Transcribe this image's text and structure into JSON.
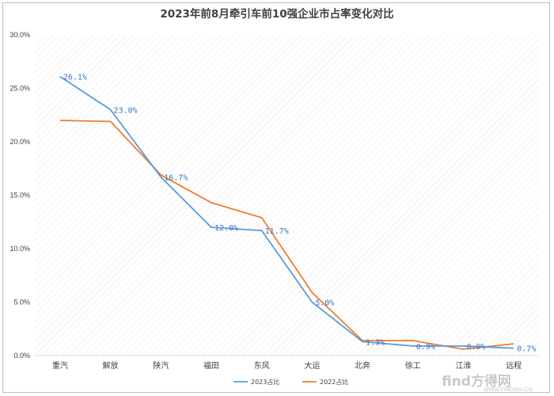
{
  "chart_data": {
    "type": "line",
    "title": "2023年前8月牵引车前10强企业市占率变化对比",
    "categories": [
      "重汽",
      "解放",
      "陕汽",
      "福田",
      "东风",
      "大运",
      "北奔",
      "徐工",
      "江淮",
      "远程"
    ],
    "ylim": [
      0,
      30
    ],
    "yticks": [
      "0.0%",
      "5.0%",
      "10.0%",
      "15.0%",
      "20.0%",
      "25.0%",
      "30.0%"
    ],
    "xlabel": "",
    "ylabel": "",
    "grid": "diagonal hatch background",
    "legend_position": "bottom",
    "series": [
      {
        "name": "2023占比",
        "color": "#5b9bd5",
        "values": [
          26.1,
          23.0,
          16.7,
          12.0,
          11.7,
          5.0,
          1.3,
          0.9,
          0.9,
          0.7
        ],
        "data_labels": [
          "26.1%",
          "23.0%",
          "16.7%",
          "12.0%",
          "11.7%",
          "5.0%",
          "1.3%",
          "0.9%",
          "0.9%",
          "0.7%"
        ]
      },
      {
        "name": "2022占比",
        "color": "#ed7d31",
        "values": [
          22.0,
          21.9,
          16.9,
          14.3,
          12.9,
          5.9,
          1.4,
          1.4,
          0.6,
          1.1
        ]
      }
    ]
  },
  "watermark": {
    "brand": "find方得网",
    "url": "WWW.FIND800.CN"
  }
}
